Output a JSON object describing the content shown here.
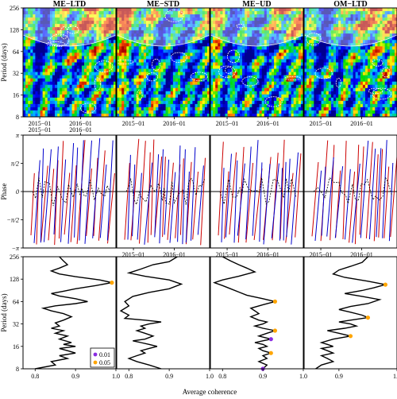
{
  "chart_data": {
    "type": "wavelet-coherence-panel",
    "panel_titles": [
      "ME−LTD",
      "ME−STD",
      "ME−UD",
      "OM−LTD"
    ],
    "row1": {
      "type": "heatmap",
      "ylabel": "Period (days)",
      "yticks": [
        "8",
        "16",
        "32",
        "64",
        "128",
        "256"
      ],
      "xticks": [
        "2015−01",
        "2016−01"
      ],
      "y_scale": "log2",
      "ylim": [
        8,
        256
      ]
    },
    "row2": {
      "type": "line",
      "ylabel": "Phase",
      "yticks": [
        "−π",
        "−π/2",
        "0",
        "π/2",
        "π"
      ],
      "xticks": [
        "2015−01",
        "2016−01"
      ],
      "ylim": [
        -3.1416,
        3.1416
      ],
      "series_colors": [
        "#cc0000",
        "#0000cc",
        "#000000"
      ]
    },
    "row3": {
      "type": "line",
      "ylabel": "Period (days)",
      "xlabel": "Average coherence",
      "yticks": [
        "8",
        "16",
        "32",
        "64",
        "128",
        "256"
      ],
      "y_scale": "log2",
      "ylim": [
        8,
        256
      ],
      "xticks_per_panel": [
        [
          "0.8",
          "0.9",
          "1.0"
        ],
        [
          "0.8",
          "0.9",
          "1.0"
        ],
        [
          "0.8",
          "0.9",
          "1.0"
        ],
        [
          "0.9",
          "1.0"
        ]
      ],
      "xlim_per_panel": [
        [
          0.77,
          1.0
        ],
        [
          0.77,
          1.0
        ],
        [
          0.77,
          1.0
        ],
        [
          0.84,
          1.0
        ]
      ],
      "legend": {
        "position": "bottom-right",
        "entries": [
          {
            "label": "0.01",
            "color": "#8a2be2"
          },
          {
            "label": "0.05",
            "color": "#ffa500"
          }
        ]
      },
      "curves": [
        {
          "points": [
            [
              0.8,
              8
            ],
            [
              0.85,
              9
            ],
            [
              0.84,
              10
            ],
            [
              0.88,
              11
            ],
            [
              0.86,
              12
            ],
            [
              0.9,
              13
            ],
            [
              0.88,
              14
            ],
            [
              0.86,
              15
            ],
            [
              0.9,
              16
            ],
            [
              0.87,
              17
            ],
            [
              0.89,
              18
            ],
            [
              0.86,
              20
            ],
            [
              0.88,
              22
            ],
            [
              0.85,
              24
            ],
            [
              0.87,
              26
            ],
            [
              0.84,
              28
            ],
            [
              0.86,
              30
            ],
            [
              0.85,
              33
            ],
            [
              0.87,
              36
            ],
            [
              0.89,
              40
            ],
            [
              0.87,
              44
            ],
            [
              0.84,
              48
            ],
            [
              0.82,
              52
            ],
            [
              0.85,
              56
            ],
            [
              0.9,
              60
            ],
            [
              0.93,
              64
            ],
            [
              0.9,
              70
            ],
            [
              0.86,
              76
            ],
            [
              0.84,
              82
            ],
            [
              0.87,
              88
            ],
            [
              0.9,
              95
            ],
            [
              0.95,
              105
            ],
            [
              0.99,
              115
            ],
            [
              0.96,
              125
            ],
            [
              0.9,
              138
            ],
            [
              0.86,
              150
            ],
            [
              0.84,
              165
            ],
            [
              0.86,
              180
            ],
            [
              0.88,
              200
            ],
            [
              0.87,
              225
            ],
            [
              0.86,
              256
            ]
          ],
          "sig01": [],
          "sig05": [
            [
              0.99,
              115
            ]
          ]
        },
        {
          "points": [
            [
              0.88,
              8
            ],
            [
              0.85,
              9
            ],
            [
              0.82,
              10
            ],
            [
              0.8,
              11
            ],
            [
              0.82,
              12
            ],
            [
              0.84,
              13
            ],
            [
              0.83,
              14
            ],
            [
              0.85,
              15
            ],
            [
              0.87,
              16
            ],
            [
              0.85,
              17
            ],
            [
              0.83,
              18
            ],
            [
              0.81,
              19
            ],
            [
              0.84,
              20
            ],
            [
              0.86,
              22
            ],
            [
              0.84,
              24
            ],
            [
              0.82,
              26
            ],
            [
              0.84,
              28
            ],
            [
              0.83,
              30
            ],
            [
              0.85,
              32
            ],
            [
              0.88,
              34
            ],
            [
              0.84,
              36
            ],
            [
              0.79,
              38
            ],
            [
              0.8,
              42
            ],
            [
              0.78,
              48
            ],
            [
              0.8,
              56
            ],
            [
              0.79,
              64
            ],
            [
              0.81,
              75
            ],
            [
              0.85,
              85
            ],
            [
              0.9,
              95
            ],
            [
              0.93,
              110
            ],
            [
              0.9,
              125
            ],
            [
              0.84,
              140
            ],
            [
              0.8,
              155
            ],
            [
              0.83,
              175
            ],
            [
              0.86,
              200
            ],
            [
              0.9,
              220
            ],
            [
              0.92,
              256
            ]
          ],
          "sig01": [],
          "sig05": []
        },
        {
          "points": [
            [
              0.9,
              8
            ],
            [
              0.91,
              9
            ],
            [
              0.89,
              10
            ],
            [
              0.91,
              11
            ],
            [
              0.9,
              12
            ],
            [
              0.92,
              13
            ],
            [
              0.9,
              14
            ],
            [
              0.89,
              15
            ],
            [
              0.91,
              16
            ],
            [
              0.9,
              17
            ],
            [
              0.88,
              18
            ],
            [
              0.9,
              19
            ],
            [
              0.92,
              20
            ],
            [
              0.89,
              22
            ],
            [
              0.91,
              24
            ],
            [
              0.93,
              26
            ],
            [
              0.9,
              28
            ],
            [
              0.88,
              30
            ],
            [
              0.9,
              32
            ],
            [
              0.91,
              34
            ],
            [
              0.89,
              36
            ],
            [
              0.87,
              40
            ],
            [
              0.89,
              44
            ],
            [
              0.88,
              48
            ],
            [
              0.87,
              52
            ],
            [
              0.9,
              58
            ],
            [
              0.93,
              64
            ],
            [
              0.9,
              70
            ],
            [
              0.86,
              78
            ],
            [
              0.84,
              86
            ],
            [
              0.82,
              95
            ],
            [
              0.8,
              105
            ],
            [
              0.78,
              115
            ],
            [
              0.8,
              125
            ],
            [
              0.84,
              140
            ],
            [
              0.88,
              160
            ],
            [
              0.86,
              180
            ],
            [
              0.84,
              200
            ],
            [
              0.82,
              225
            ],
            [
              0.8,
              256
            ]
          ],
          "sig01": [
            [
              0.92,
              20
            ],
            [
              0.9,
              8
            ]
          ],
          "sig05": [
            [
              0.92,
              13
            ],
            [
              0.93,
              26
            ],
            [
              0.93,
              64
            ]
          ]
        },
        {
          "points": [
            [
              0.86,
              8
            ],
            [
              0.87,
              9
            ],
            [
              0.89,
              10
            ],
            [
              0.88,
              11
            ],
            [
              0.87,
              12
            ],
            [
              0.89,
              13
            ],
            [
              0.88,
              14
            ],
            [
              0.87,
              15
            ],
            [
              0.89,
              16
            ],
            [
              0.88,
              17
            ],
            [
              0.87,
              18
            ],
            [
              0.89,
              20
            ],
            [
              0.92,
              22
            ],
            [
              0.9,
              24
            ],
            [
              0.88,
              26
            ],
            [
              0.91,
              28
            ],
            [
              0.93,
              30
            ],
            [
              0.92,
              32
            ],
            [
              0.9,
              34
            ],
            [
              0.92,
              36
            ],
            [
              0.95,
              39
            ],
            [
              0.94,
              42
            ],
            [
              0.92,
              46
            ],
            [
              0.9,
              50
            ],
            [
              0.92,
              55
            ],
            [
              0.95,
              60
            ],
            [
              0.97,
              68
            ],
            [
              0.94,
              75
            ],
            [
              0.91,
              82
            ],
            [
              0.94,
              90
            ],
            [
              0.96,
              98
            ],
            [
              0.98,
              108
            ],
            [
              0.95,
              120
            ],
            [
              0.91,
              135
            ],
            [
              0.89,
              150
            ],
            [
              0.9,
              170
            ],
            [
              0.92,
              190
            ],
            [
              0.94,
              215
            ],
            [
              0.95,
              256
            ]
          ],
          "sig01": [],
          "sig05": [
            [
              0.98,
              108
            ],
            [
              0.95,
              39
            ],
            [
              0.92,
              22
            ]
          ]
        }
      ]
    }
  }
}
